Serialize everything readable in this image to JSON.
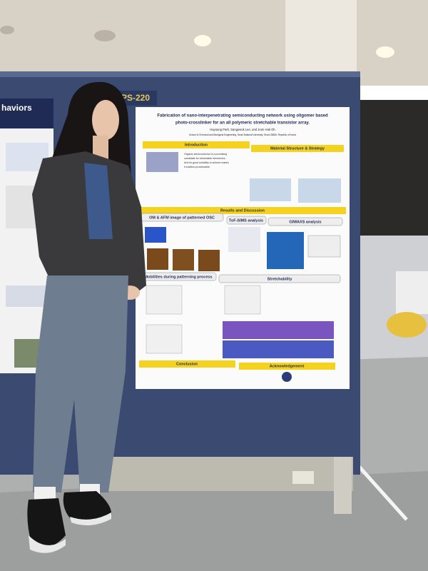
{
  "booth_number": "PS-220",
  "left_poster": {
    "title_fragment": "haviors"
  },
  "poster": {
    "title": [
      "Fabrication of nano-interpenetrating semiconducting network using oligomer based",
      "photo-crosslinker for an all polymeric stretchable transistor array."
    ],
    "authors": "Hayoung Park, Sangwook Lee, and Joon Hak Oh",
    "affiliation": "School of Chemical and Biological Engineering, Seoul National University, Seoul 08826, Republic of Korea",
    "introduction_bullets": [
      "Organic semiconductor is a promising",
      "candidate for stretchable electronics.",
      "And its good solubility to solvent makes",
      "it solution-processable."
    ],
    "sections": {
      "introduction": "Introduction",
      "material": "Material Structure & Strategy",
      "results": "Results and Discussion",
      "om_afm": "OM & AFM image of patterned OSC",
      "tof_sims": "ToF-SIMS analysis",
      "giwaxs": "GIWAXS analysis",
      "mobilities": "Mobilities during patterning process",
      "stretchability": "Stretchability",
      "conclusion": "Conclusion",
      "acknowledgement": "Acknowledgement"
    }
  }
}
